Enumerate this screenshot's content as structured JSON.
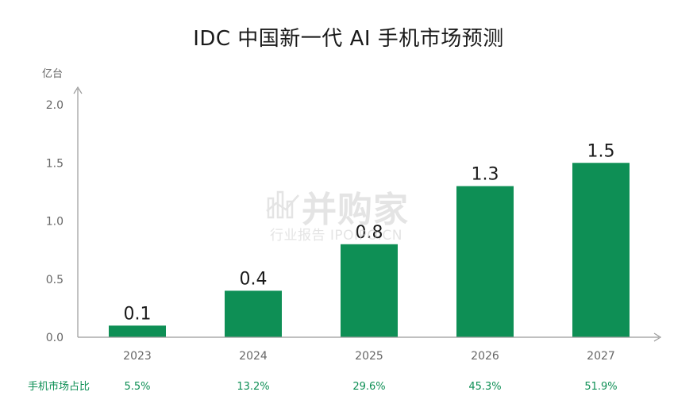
{
  "chart_data": {
    "type": "bar",
    "title": "IDC 中国新一代 AI 手机市场预测",
    "ylabel": "亿台",
    "xlabel": "",
    "categories": [
      "2023",
      "2024",
      "2025",
      "2026",
      "2027"
    ],
    "values": [
      0.1,
      0.4,
      0.8,
      1.3,
      1.5
    ],
    "value_labels": [
      "0.1",
      "0.4",
      "0.8",
      "1.3",
      "1.5"
    ],
    "ylim": [
      0,
      2.0
    ],
    "yticks": [
      "0.0",
      "0.5",
      "1.0",
      "1.5",
      "2.0"
    ],
    "grid": false,
    "bar_color": "#0e8f55",
    "share_row": {
      "label": "手机市场占比",
      "values": [
        "5.5%",
        "13.2%",
        "29.6%",
        "45.3%",
        "51.9%"
      ],
      "color": "#0e8f55"
    }
  },
  "watermark": {
    "main": "并购家",
    "sub": "行业报告 IPOIPO.CN"
  }
}
